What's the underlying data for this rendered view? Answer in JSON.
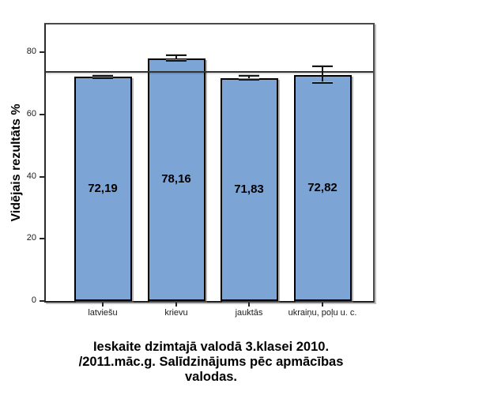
{
  "chart_data": {
    "type": "bar",
    "title": "Ieskaite dzimtajā valodā 3.klasei 2010.\n/2011.māc.g. Salīdzinājums pēc apmācības\nvalodas.",
    "ylabel": "Vidējais rezultāts %",
    "xlabel": "",
    "categories": [
      "latviešu",
      "krievu",
      "jauktās",
      "ukraiņu, poļu u. c."
    ],
    "values": [
      72.19,
      78.16,
      71.83,
      72.82
    ],
    "value_labels": [
      "72,19",
      "78,16",
      "71,83",
      "72,82"
    ],
    "errors": [
      0.4,
      0.9,
      0.75,
      2.7
    ],
    "yticks": [
      0,
      20,
      40,
      60,
      80
    ],
    "ytick_labels": [
      "0",
      "20",
      "40",
      "60",
      "80"
    ],
    "ylim": [
      0,
      89
    ],
    "reference_line": 73.75,
    "grid": false,
    "legend_position": "none",
    "bar_color": "#7CA5D6",
    "bar_border_color": "#000000",
    "frame_color": "#4A4A4A",
    "reference_line_color": "#333333"
  }
}
